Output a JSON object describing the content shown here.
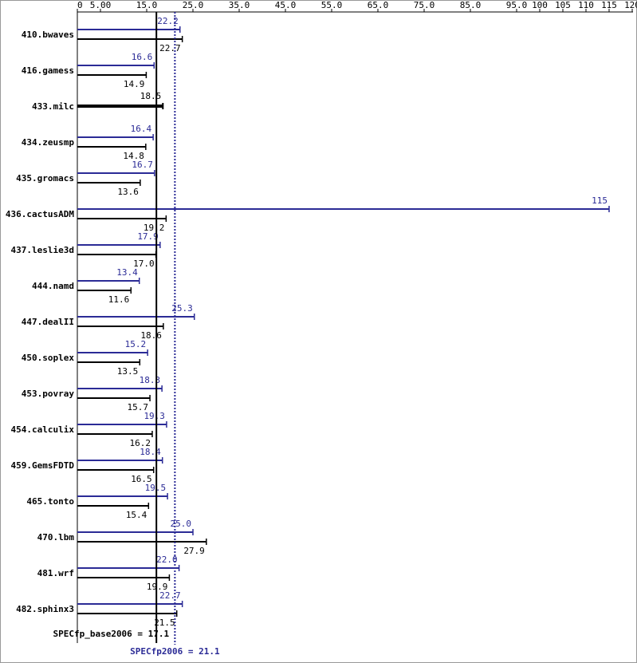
{
  "chart_data": {
    "type": "bar",
    "orientation": "horizontal",
    "categories": [
      "410.bwaves",
      "416.gamess",
      "433.milc",
      "434.zeusmp",
      "435.gromacs",
      "436.cactusADM",
      "437.leslie3d",
      "444.namd",
      "447.dealII",
      "450.soplex",
      "453.povray",
      "454.calculix",
      "459.GemsFDTD",
      "465.tonto",
      "470.lbm",
      "481.wrf",
      "482.sphinx3"
    ],
    "series": [
      {
        "name": "peak",
        "color": "#2b2b96",
        "values": [
          22.2,
          16.6,
          null,
          16.4,
          16.7,
          115,
          17.9,
          13.4,
          25.3,
          15.2,
          18.3,
          19.3,
          18.4,
          19.5,
          25.0,
          22.0,
          22.7
        ],
        "value_labels": [
          "22.2",
          "16.6",
          null,
          "16.4",
          "16.7",
          "115",
          "17.9",
          "13.4",
          "25.3",
          "15.2",
          "18.3",
          "19.3",
          "18.4",
          "19.5",
          "25.0",
          "22.0",
          "22.7"
        ]
      },
      {
        "name": "base",
        "color": "#000000",
        "values": [
          22.7,
          14.9,
          18.5,
          14.8,
          13.6,
          19.2,
          17.0,
          11.6,
          18.6,
          13.5,
          15.7,
          16.2,
          16.5,
          15.4,
          27.9,
          19.9,
          21.5
        ],
        "value_labels": [
          "22.7",
          "14.9",
          "18.5",
          "14.8",
          "13.6",
          "19.2",
          "17.0",
          "11.6",
          "18.6",
          "13.5",
          "15.7",
          "16.2",
          "16.5",
          "15.4",
          "27.9",
          "19.9",
          "21.5"
        ]
      }
    ],
    "xlim": [
      0,
      120
    ],
    "xticks": [
      0,
      {
        "value": 5,
        "label": "5.00"
      },
      {
        "value": 15,
        "label": "15.0"
      },
      {
        "value": 25,
        "label": "25.0"
      },
      {
        "value": 35,
        "label": "35.0"
      },
      {
        "value": 45,
        "label": "45.0"
      },
      {
        "value": 55,
        "label": "55.0"
      },
      {
        "value": 65,
        "label": "65.0"
      },
      {
        "value": 75,
        "label": "75.0"
      },
      {
        "value": 85,
        "label": "85.0"
      },
      {
        "value": 95,
        "label": "95.0"
      },
      100,
      105,
      110,
      115,
      120
    ],
    "reference_lines": [
      {
        "label": "SPECfp_base2006 = 17.1",
        "value": 17.1,
        "color": "#000000",
        "style": "solid"
      },
      {
        "label": "SPECfp2006 = 21.1",
        "value": 21.1,
        "color": "#2b2b96",
        "style": "dotted"
      }
    ]
  }
}
